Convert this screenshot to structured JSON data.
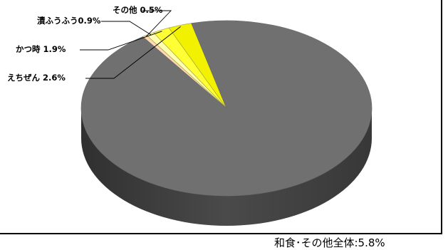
{
  "chart_data": {
    "type": "pie",
    "style": "3d",
    "categories": [
      "えちぜん",
      "かつ時",
      "漬ふうふう",
      "その他"
    ],
    "values": [
      2.6,
      1.9,
      0.9,
      0.5
    ],
    "unit": "%",
    "data_labels": [
      "えちぜん 2.6%",
      "かつ時 1.9%",
      "漬ふうふう0.9%",
      "その他 0.5%"
    ],
    "remainder_value": 94.2,
    "colors": {
      "remainder": "#707070",
      "slices": [
        "#f2f200",
        "#ffff33",
        "#ffffb0",
        "#ffd9b3"
      ],
      "side_remainder": "#4a4a4a",
      "side_slice": "#a8a800"
    },
    "title": "",
    "xlabel": "",
    "ylabel": "",
    "legend": "none"
  },
  "footnote": "和食･その他全体:5.8%"
}
